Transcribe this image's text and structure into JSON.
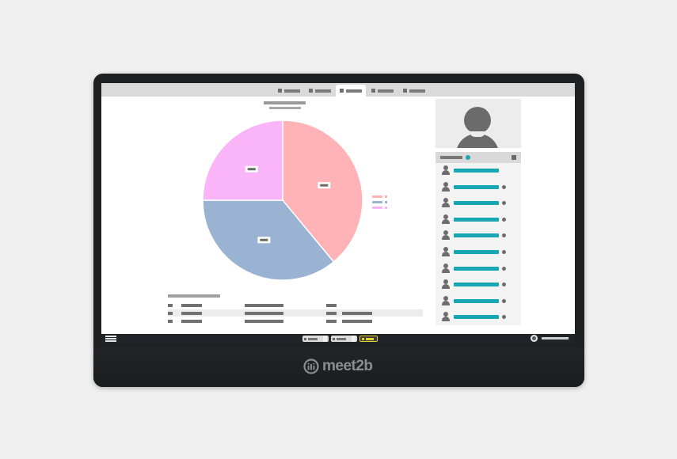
{
  "app": {
    "brand": "meet2b"
  },
  "colors": {
    "device": "#1f2022",
    "accent": "#1aa8b5",
    "toolbar": "#202327",
    "highlight_button": "#e3d32b"
  },
  "tabs": [
    {
      "icon": "tab-icon",
      "active": false
    },
    {
      "icon": "tab-icon",
      "active": false
    },
    {
      "icon": "tab-icon",
      "active": true
    },
    {
      "icon": "tab-icon",
      "active": false
    },
    {
      "icon": "tab-icon",
      "active": false
    }
  ],
  "chart_data": {
    "type": "pie",
    "slices": [
      {
        "value": 39,
        "color": "#ffb3b7"
      },
      {
        "value": 36,
        "color": "#9bb3d2"
      },
      {
        "value": 25,
        "color": "#f9b5f7"
      }
    ],
    "legend_position": "right"
  },
  "participants": {
    "count": 10,
    "icons": {
      "person": "person-icon",
      "status": "status-dot-icon"
    }
  },
  "toolbar": {
    "menu_icon": "hamburger-menu-icon",
    "buttons": [
      {
        "style": "default"
      },
      {
        "style": "default"
      },
      {
        "style": "highlight"
      }
    ]
  }
}
